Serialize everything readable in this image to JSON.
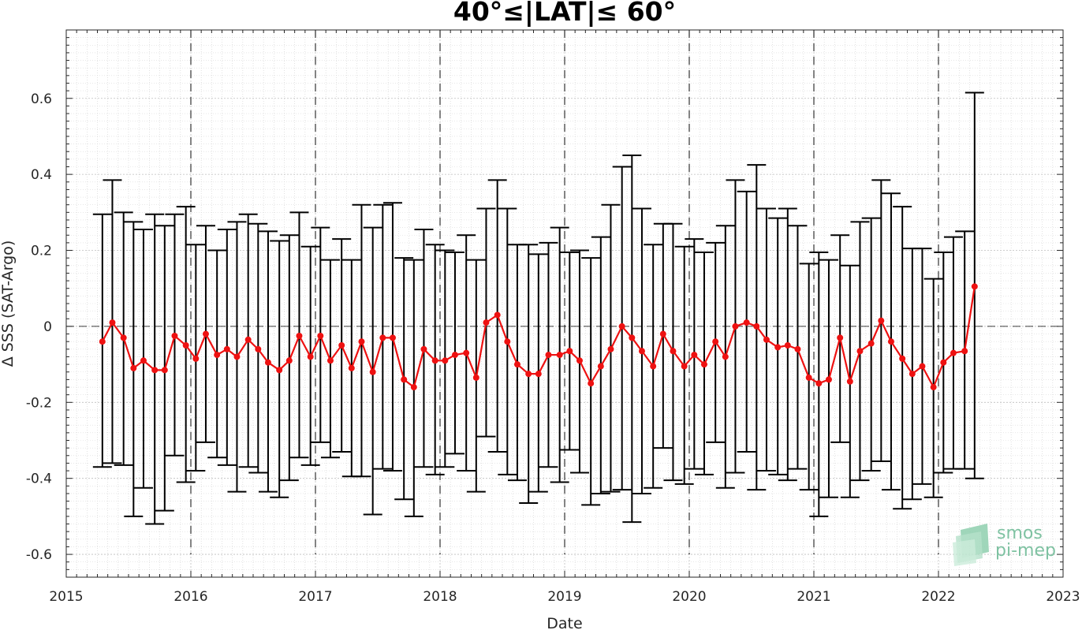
{
  "chart_data": {
    "type": "line",
    "title": "40°≤|LAT|≤ 60°",
    "xlabel": "Date",
    "ylabel": "Δ SSS (SAT-Argo)",
    "xlim": [
      2015,
      2023
    ],
    "ylim": [
      -0.66,
      0.78
    ],
    "x_ticks": [
      2015,
      2016,
      2017,
      2018,
      2019,
      2020,
      2021,
      2022,
      2023
    ],
    "x_tick_labels": [
      "2015",
      "2016",
      "2017",
      "2018",
      "2019",
      "2020",
      "2021",
      "2022",
      "2023"
    ],
    "y_ticks": [
      -0.6,
      -0.4,
      -0.2,
      0,
      0.2,
      0.4,
      0.6
    ],
    "y_tick_labels": [
      "-0.6",
      "-0.4",
      "-0.2",
      "0",
      "0.2",
      "0.4",
      "0.6"
    ],
    "grid": "major and minor, dotted",
    "year_lines": "dashed vertical at each year",
    "zero_line": "dashed horizontal at 0",
    "series_color": "#ee1111",
    "errorbar_color": "#000000",
    "logo": {
      "line1": "smos",
      "line2": "pi-mep",
      "color": "#7fc2a2"
    },
    "series": [
      {
        "x": [
          2015.29,
          2015.37,
          2015.46,
          2015.54,
          2015.62,
          2015.71,
          2015.79,
          2015.87,
          2015.96,
          2016.04,
          2016.12,
          2016.21,
          2016.29,
          2016.37,
          2016.46,
          2016.54,
          2016.62,
          2016.71,
          2016.79,
          2016.87,
          2016.96,
          2017.04,
          2017.12,
          2017.21,
          2017.29,
          2017.37,
          2017.46,
          2017.54,
          2017.62,
          2017.71,
          2017.79,
          2017.87,
          2017.96,
          2018.04,
          2018.12,
          2018.21,
          2018.29,
          2018.37,
          2018.46,
          2018.54,
          2018.62,
          2018.71,
          2018.79,
          2018.87,
          2018.96,
          2019.04,
          2019.12,
          2019.21,
          2019.29,
          2019.37,
          2019.46,
          2019.54,
          2019.62,
          2019.71,
          2019.79,
          2019.87,
          2019.96,
          2020.04,
          2020.12,
          2020.21,
          2020.29,
          2020.37,
          2020.46,
          2020.54,
          2020.62,
          2020.71,
          2020.79,
          2020.87,
          2020.96,
          2021.04,
          2021.12,
          2021.21,
          2021.29,
          2021.37,
          2021.46,
          2021.54,
          2021.62,
          2021.71,
          2021.79,
          2021.87,
          2021.96,
          2022.04,
          2022.12,
          2022.21,
          2022.29
        ],
        "mean": [
          -0.04,
          0.01,
          -0.03,
          -0.11,
          -0.09,
          -0.115,
          -0.115,
          -0.025,
          -0.05,
          -0.085,
          -0.02,
          -0.075,
          -0.06,
          -0.08,
          -0.035,
          -0.06,
          -0.095,
          -0.115,
          -0.09,
          -0.025,
          -0.08,
          -0.025,
          -0.09,
          -0.05,
          -0.11,
          -0.04,
          -0.12,
          -0.03,
          -0.03,
          -0.14,
          -0.16,
          -0.06,
          -0.09,
          -0.09,
          -0.075,
          -0.07,
          -0.135,
          0.01,
          0.03,
          -0.04,
          -0.1,
          -0.125,
          -0.125,
          -0.075,
          -0.075,
          -0.065,
          -0.09,
          -0.15,
          -0.105,
          -0.06,
          0.0,
          -0.03,
          -0.065,
          -0.105,
          -0.02,
          -0.065,
          -0.105,
          -0.075,
          -0.1,
          -0.04,
          -0.08,
          0.0,
          0.01,
          0.0,
          -0.035,
          -0.055,
          -0.05,
          -0.06,
          -0.135,
          -0.15,
          -0.14,
          -0.03,
          -0.145,
          -0.065,
          -0.045,
          0.015,
          -0.04,
          -0.085,
          -0.125,
          -0.105,
          -0.16,
          -0.095,
          -0.07,
          -0.065,
          0.105
        ],
        "upper": [
          0.295,
          0.385,
          0.3,
          0.275,
          0.255,
          0.295,
          0.265,
          0.295,
          0.315,
          0.215,
          0.265,
          0.2,
          0.255,
          0.275,
          0.295,
          0.27,
          0.25,
          0.225,
          0.24,
          0.3,
          0.21,
          0.26,
          0.175,
          0.23,
          0.175,
          0.32,
          0.26,
          0.32,
          0.325,
          0.18,
          0.175,
          0.255,
          0.215,
          0.2,
          0.195,
          0.24,
          0.175,
          0.31,
          0.385,
          0.31,
          0.215,
          0.215,
          0.19,
          0.22,
          0.26,
          0.195,
          0.2,
          0.18,
          0.235,
          0.32,
          0.42,
          0.45,
          0.31,
          0.215,
          0.27,
          0.27,
          0.21,
          0.23,
          0.195,
          0.22,
          0.265,
          0.385,
          0.355,
          0.425,
          0.31,
          0.285,
          0.31,
          0.265,
          0.165,
          0.195,
          0.175,
          0.24,
          0.16,
          0.275,
          0.285,
          0.385,
          0.35,
          0.315,
          0.205,
          0.205,
          0.125,
          0.195,
          0.235,
          0.25,
          0.615
        ],
        "lower": [
          -0.37,
          -0.36,
          -0.365,
          -0.5,
          -0.425,
          -0.52,
          -0.485,
          -0.34,
          -0.41,
          -0.38,
          -0.305,
          -0.345,
          -0.365,
          -0.435,
          -0.37,
          -0.385,
          -0.435,
          -0.45,
          -0.405,
          -0.345,
          -0.365,
          -0.305,
          -0.345,
          -0.33,
          -0.395,
          -0.395,
          -0.495,
          -0.375,
          -0.38,
          -0.455,
          -0.5,
          -0.37,
          -0.39,
          -0.37,
          -0.335,
          -0.38,
          -0.435,
          -0.29,
          -0.33,
          -0.39,
          -0.405,
          -0.465,
          -0.435,
          -0.37,
          -0.41,
          -0.325,
          -0.385,
          -0.47,
          -0.44,
          -0.435,
          -0.43,
          -0.515,
          -0.44,
          -0.425,
          -0.32,
          -0.405,
          -0.415,
          -0.375,
          -0.39,
          -0.305,
          -0.425,
          -0.385,
          -0.33,
          -0.43,
          -0.38,
          -0.39,
          -0.405,
          -0.375,
          -0.43,
          -0.5,
          -0.45,
          -0.305,
          -0.45,
          -0.405,
          -0.38,
          -0.355,
          -0.43,
          -0.48,
          -0.455,
          -0.415,
          -0.45,
          -0.385,
          -0.375,
          -0.375,
          -0.4
        ]
      }
    ]
  }
}
